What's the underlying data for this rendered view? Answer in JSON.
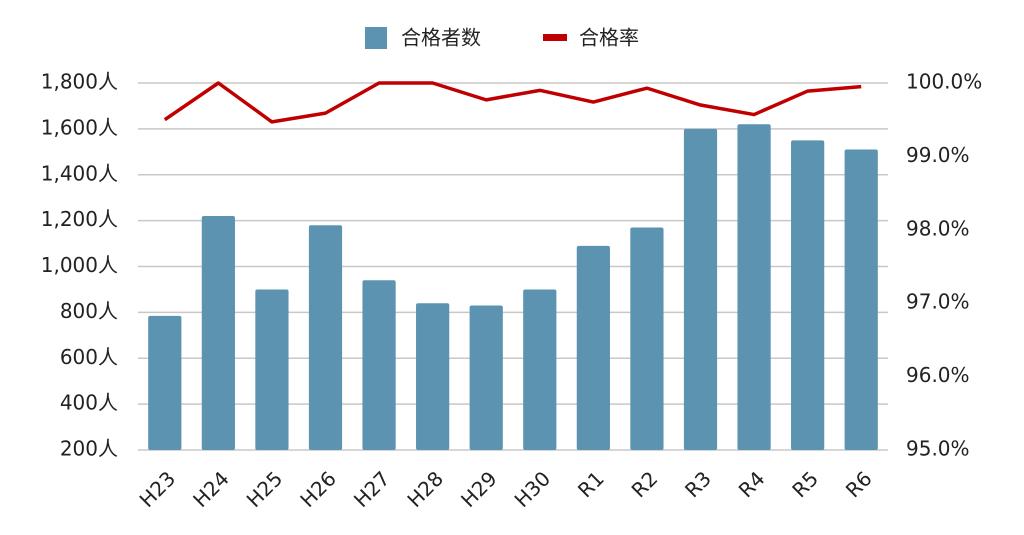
{
  "chart_data": {
    "type": "bar-line",
    "categories": [
      "H23",
      "H24",
      "H25",
      "H26",
      "H27",
      "H28",
      "H29",
      "H30",
      "R1",
      "R2",
      "R3",
      "R4",
      "R5",
      "R6"
    ],
    "series": [
      {
        "name": "合格者数",
        "color": "#5b93b0",
        "type": "bar",
        "values": [
          785,
          1220,
          900,
          1180,
          940,
          840,
          830,
          900,
          1090,
          1170,
          1600,
          1620,
          1550,
          1510
        ]
      },
      {
        "name": "合格率",
        "color": "#c00000",
        "type": "line",
        "axis": "y2",
        "values": [
          99.5,
          100,
          99.47,
          99.59,
          100,
          100,
          99.77,
          99.9,
          99.74,
          99.93,
          99.7,
          99.57,
          99.89,
          99.95
        ]
      }
    ],
    "ylim": [
      200,
      1800
    ],
    "yticks": [
      {
        "value": 200,
        "label": "200人"
      },
      {
        "value": 400,
        "label": "400人"
      },
      {
        "value": 600,
        "label": "600人"
      },
      {
        "value": 800,
        "label": "800人"
      },
      {
        "value": 1000,
        "label": "1,000人"
      },
      {
        "value": 1200,
        "label": "1,200人"
      },
      {
        "value": 1400,
        "label": "1,400人"
      },
      {
        "value": 1600,
        "label": "1,600人"
      },
      {
        "value": 1800,
        "label": "1,800人"
      }
    ],
    "y2lim": [
      95,
      100
    ],
    "y2ticks": [
      {
        "value": 95,
        "label": "95.0%"
      },
      {
        "value": 96,
        "label": "96.0%"
      },
      {
        "value": 97,
        "label": "97.0%"
      },
      {
        "value": 98,
        "label": "98.0%"
      },
      {
        "value": 99,
        "label": "99.0%"
      },
      {
        "value": 100,
        "label": "100.0%"
      }
    ],
    "grid": true,
    "legend": "top"
  }
}
